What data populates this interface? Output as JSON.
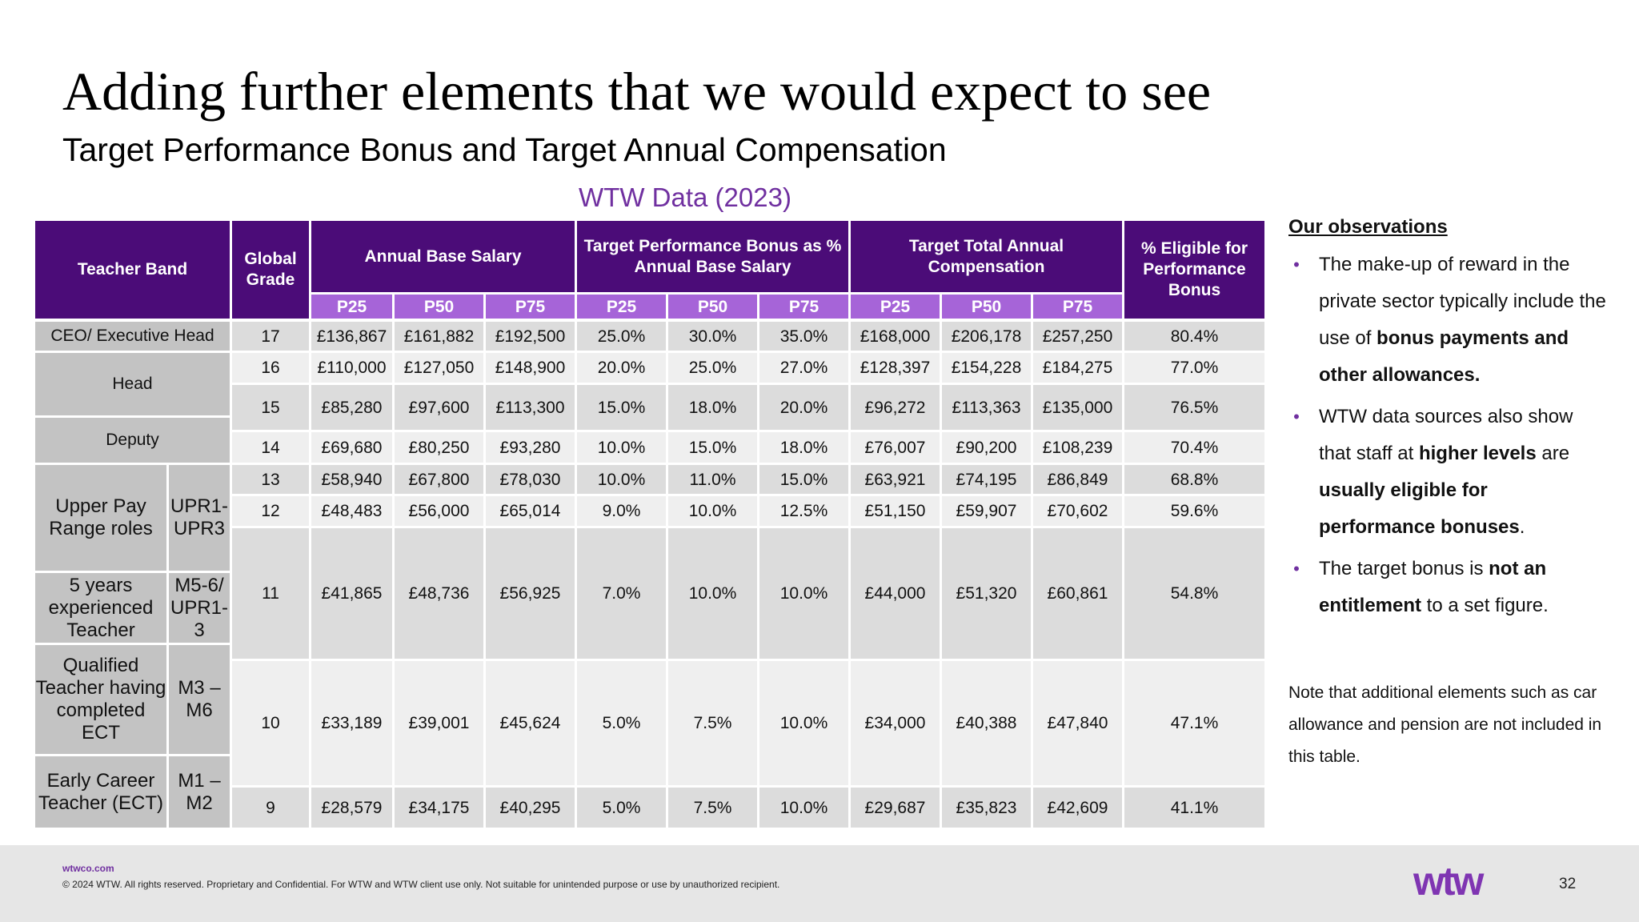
{
  "slide": {
    "title": "Adding further elements that we would expect to see",
    "subtitle": "Target Performance Bonus and Target Annual Compensation",
    "data_label": "WTW Data (2023)"
  },
  "table": {
    "headers": {
      "teacher_band": "Teacher Band",
      "global_grade": "Global Grade",
      "annual_base_salary": "Annual Base Salary",
      "target_bonus": "Target Performance Bonus as % Annual Base Salary",
      "target_total": "Target Total Annual Compensation",
      "eligible": "% Eligible for Performance Bonus",
      "percentiles": [
        "P25",
        "P50",
        "P75"
      ]
    },
    "bands": {
      "ceo": "CEO/ Executive Head",
      "head": "Head",
      "deputy": "Deputy",
      "upr": "Upper Pay Range roles",
      "upr_code": "UPR1- UPR3",
      "five_years": "5 years experienced Teacher",
      "five_years_code": "M5-6/ UPR1-3",
      "qualified": "Qualified Teacher having completed ECT",
      "qualified_code": "M3 – M6",
      "ect": "Early Career Teacher (ECT)",
      "ect_code": "M1 – M2"
    },
    "rows": [
      {
        "grade": "17",
        "values": [
          "£136,867",
          "£161,882",
          "£192,500",
          "25.0%",
          "30.0%",
          "35.0%",
          "£168,000",
          "£206,178",
          "£257,250",
          "80.4%"
        ]
      },
      {
        "grade": "16",
        "values": [
          "£110,000",
          "£127,050",
          "£148,900",
          "20.0%",
          "25.0%",
          "27.0%",
          "£128,397",
          "£154,228",
          "£184,275",
          "77.0%"
        ]
      },
      {
        "grade": "15",
        "values": [
          "£85,280",
          "£97,600",
          "£113,300",
          "15.0%",
          "18.0%",
          "20.0%",
          "£96,272",
          "£113,363",
          "£135,000",
          "76.5%"
        ]
      },
      {
        "grade": "14",
        "values": [
          "£69,680",
          "£80,250",
          "£93,280",
          "10.0%",
          "15.0%",
          "18.0%",
          "£76,007",
          "£90,200",
          "£108,239",
          "70.4%"
        ]
      },
      {
        "grade": "13",
        "values": [
          "£58,940",
          "£67,800",
          "£78,030",
          "10.0%",
          "11.0%",
          "15.0%",
          "£63,921",
          "£74,195",
          "£86,849",
          "68.8%"
        ]
      },
      {
        "grade": "12",
        "values": [
          "£48,483",
          "£56,000",
          "£65,014",
          "9.0%",
          "10.0%",
          "12.5%",
          "£51,150",
          "£59,907",
          "£70,602",
          "59.6%"
        ]
      },
      {
        "grade": "11",
        "values": [
          "£41,865",
          "£48,736",
          "£56,925",
          "7.0%",
          "10.0%",
          "10.0%",
          "£44,000",
          "£51,320",
          "£60,861",
          "54.8%"
        ]
      },
      {
        "grade": "10",
        "values": [
          "£33,189",
          "£39,001",
          "£45,624",
          "5.0%",
          "7.5%",
          "10.0%",
          "£34,000",
          "£40,388",
          "£47,840",
          "47.1%"
        ]
      },
      {
        "grade": "9",
        "values": [
          "£28,579",
          "£34,175",
          "£40,295",
          "5.0%",
          "7.5%",
          "10.0%",
          "£29,687",
          "£35,823",
          "£42,609",
          "41.1%"
        ]
      }
    ]
  },
  "observations": {
    "heading": "Our observations",
    "bullets": [
      [
        {
          "t": "The make-up of reward in the private sector typically include the use of "
        },
        {
          "t": "bonus payments and other allowances.",
          "b": true
        }
      ],
      [
        {
          "t": "WTW data sources also show that staff at "
        },
        {
          "t": "higher levels",
          "b": true
        },
        {
          "t": " are "
        },
        {
          "t": "usually eligible for performance bonuses",
          "b": true
        },
        {
          "t": "."
        }
      ],
      [
        {
          "t": "The target bonus is "
        },
        {
          "t": "not an entitlement",
          "b": true
        },
        {
          "t": " to a set figure."
        }
      ]
    ],
    "note": "Note that additional elements such as car allowance and pension are not included in this table."
  },
  "footer": {
    "url": "wtwco.com",
    "copyright": "© 2024 WTW. All rights reserved. Proprietary and Confidential. For WTW and WTW client use only. Not suitable for unintended purpose or use by unauthorized recipient.",
    "logo": "wtw",
    "page_number": "32"
  },
  "colors": {
    "header_dark": "#4b0c78",
    "header_light": "#a664d8",
    "accent": "#7030a0"
  }
}
